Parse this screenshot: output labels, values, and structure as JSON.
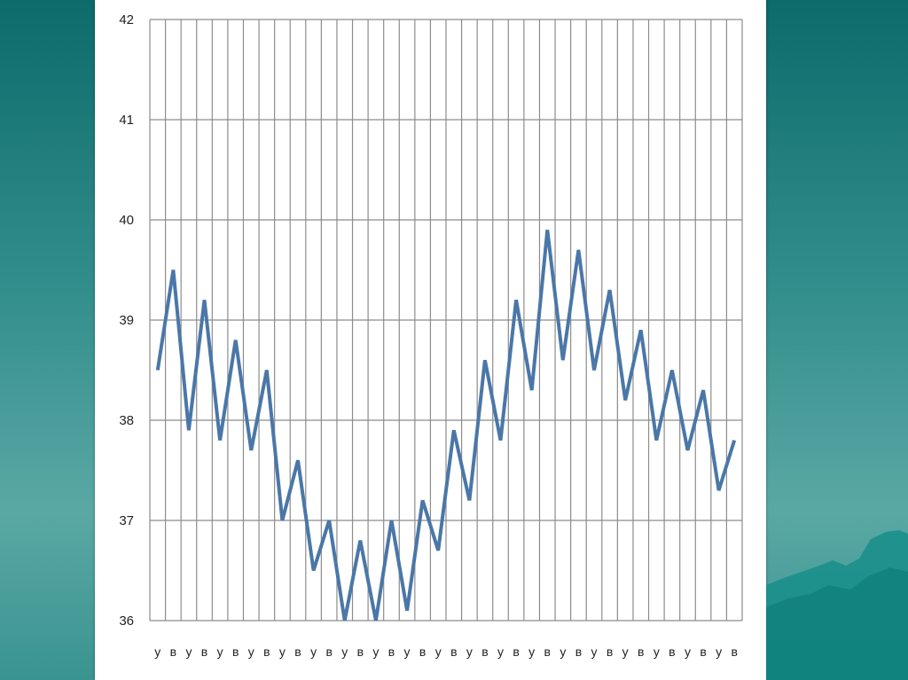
{
  "chart_data": {
    "type": "line",
    "title": "",
    "xlabel": "",
    "ylabel": "",
    "ylim": [
      36,
      42
    ],
    "yticks": [
      36,
      37,
      38,
      39,
      40,
      41,
      42
    ],
    "grid": true,
    "legend": "none",
    "categories": [
      "у",
      "в",
      "у",
      "в",
      "у",
      "в",
      "у",
      "в",
      "у",
      "в",
      "у",
      "в",
      "у",
      "в",
      "у",
      "в",
      "у",
      "в",
      "у",
      "в",
      "у",
      "в",
      "у",
      "в",
      "у",
      "в",
      "у",
      "в",
      "у",
      "в",
      "у",
      "в",
      "у",
      "в",
      "у",
      "в",
      "у",
      "в"
    ],
    "series": [
      {
        "color": "#4a77a8",
        "values": [
          38.5,
          39.5,
          37.9,
          39.2,
          37.8,
          38.8,
          37.7,
          38.5,
          37.0,
          37.6,
          36.5,
          37.0,
          36.0,
          36.8,
          36.0,
          37.0,
          36.1,
          37.2,
          36.7,
          37.9,
          37.2,
          38.6,
          37.8,
          39.2,
          38.3,
          39.9,
          38.6,
          39.7,
          38.5,
          39.3,
          38.2,
          38.9,
          37.8,
          38.5,
          37.7,
          38.3,
          37.3,
          37.8
        ]
      }
    ]
  },
  "colors": {
    "line": "#4a77a8",
    "grid": "#8c8c8c",
    "background": "#ffffff"
  }
}
